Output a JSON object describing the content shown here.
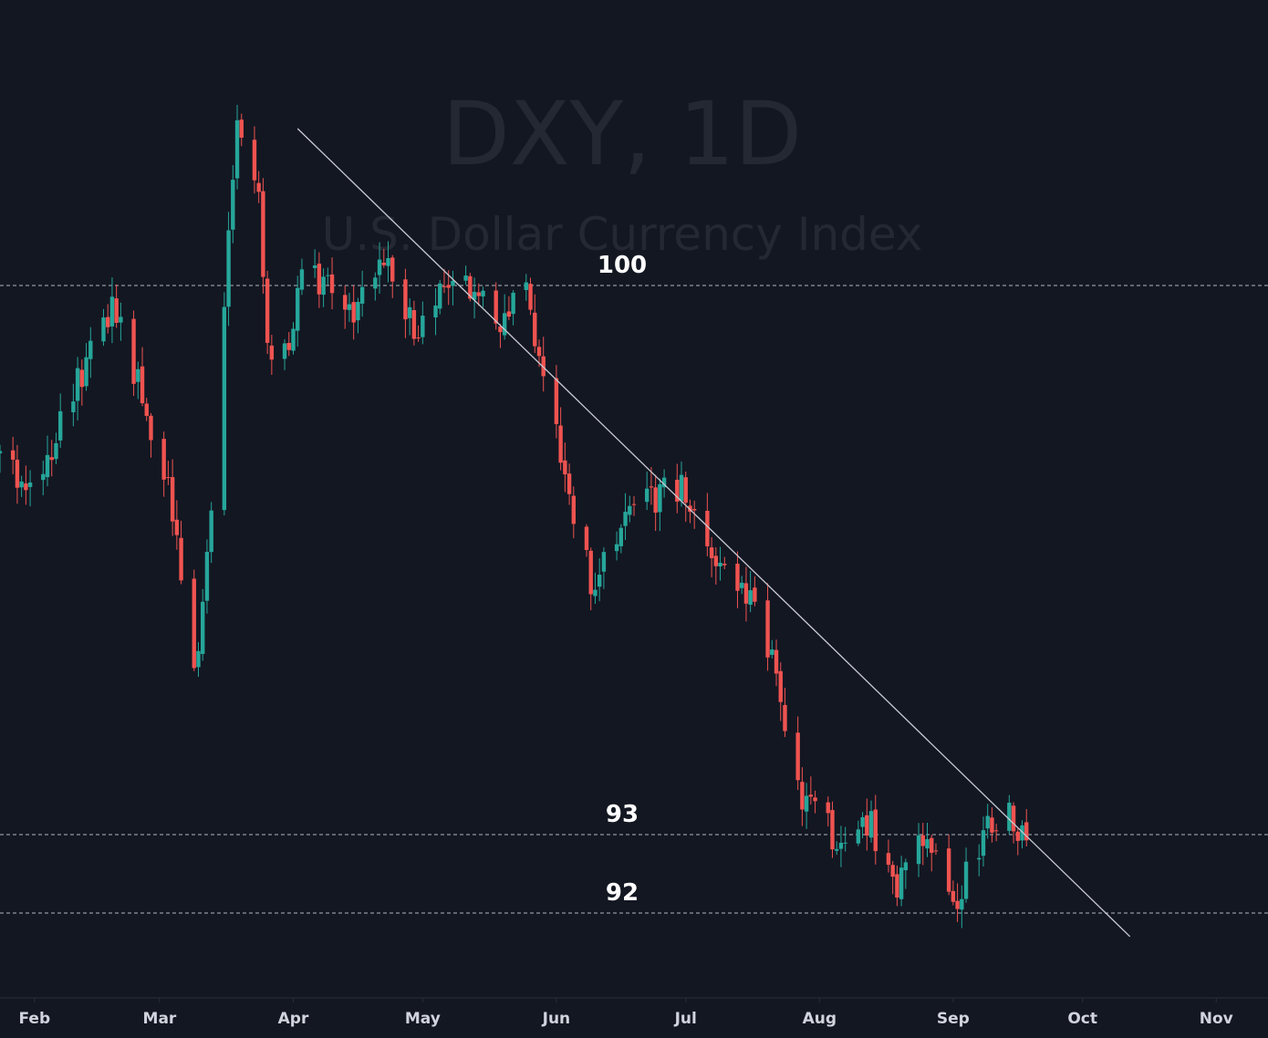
{
  "colors": {
    "background": "#131722",
    "up": "#26a69a",
    "down": "#ef5350",
    "trendline": "#c8cbd3",
    "level_line": "#b2b5be",
    "level_label": "#ffffff",
    "axis_text": "#d1d4dc",
    "watermark": "#242833"
  },
  "watermark": {
    "title": "DXY, 1D",
    "subtitle": "U.S. Dollar Currency Index"
  },
  "chart_data": {
    "type": "candlestick",
    "symbol": "DXY",
    "interval": "1D",
    "x_range": [
      "2020-01-24",
      "2020-11-13"
    ],
    "y_range": [
      91.3,
      102.3
    ],
    "x_tick_labels": [
      {
        "date": "2020-02-01",
        "label": "Feb"
      },
      {
        "date": "2020-03-01",
        "label": "Mar"
      },
      {
        "date": "2020-04-01",
        "label": "Apr"
      },
      {
        "date": "2020-05-01",
        "label": "May"
      },
      {
        "date": "2020-06-01",
        "label": "Jun"
      },
      {
        "date": "2020-07-01",
        "label": "Jul"
      },
      {
        "date": "2020-08-01",
        "label": "Aug"
      },
      {
        "date": "2020-09-01",
        "label": "Sep"
      },
      {
        "date": "2020-10-01",
        "label": "Oct"
      },
      {
        "date": "2020-11-01",
        "label": "Nov"
      }
    ],
    "horizontal_levels": [
      {
        "value": 100,
        "label": "100"
      },
      {
        "value": 93,
        "label": "93"
      },
      {
        "value": 92,
        "label": "92"
      }
    ],
    "trendline": {
      "start": [
        "2020-04-02",
        102.0
      ],
      "end": [
        "2020-10-12",
        91.7
      ]
    },
    "keypoints": [
      [
        "2020-01-24",
        97.8
      ],
      [
        "2020-01-31",
        97.4
      ],
      [
        "2020-02-10",
        98.6
      ],
      [
        "2020-02-19",
        99.7
      ],
      [
        "2020-02-27",
        98.4
      ],
      [
        "2020-03-05",
        96.9
      ],
      [
        "2020-03-09",
        94.9
      ],
      [
        "2020-03-12",
        96.5
      ],
      [
        "2020-03-19",
        102.3
      ],
      [
        "2020-03-24",
        101.0
      ],
      [
        "2020-03-26",
        99.2
      ],
      [
        "2020-03-31",
        99.0
      ],
      [
        "2020-04-03",
        100.4
      ],
      [
        "2020-04-08",
        100.0
      ],
      [
        "2020-04-15",
        99.6
      ],
      [
        "2020-04-22",
        100.3
      ],
      [
        "2020-04-29",
        99.4
      ],
      [
        "2020-05-04",
        99.8
      ],
      [
        "2020-05-12",
        100.0
      ],
      [
        "2020-05-19",
        99.5
      ],
      [
        "2020-05-25",
        99.9
      ],
      [
        "2020-06-01",
        98.3
      ],
      [
        "2020-06-05",
        96.9
      ],
      [
        "2020-06-10",
        96.1
      ],
      [
        "2020-06-16",
        97.0
      ],
      [
        "2020-06-24",
        97.3
      ],
      [
        "2020-06-30",
        97.4
      ],
      [
        "2020-07-08",
        96.4
      ],
      [
        "2020-07-17",
        95.9
      ],
      [
        "2020-07-23",
        94.8
      ],
      [
        "2020-07-27",
        93.5
      ],
      [
        "2020-07-31",
        93.3
      ],
      [
        "2020-08-06",
        92.8
      ],
      [
        "2020-08-13",
        93.1
      ],
      [
        "2020-08-19",
        92.4
      ],
      [
        "2020-08-25",
        93.0
      ],
      [
        "2020-09-01",
        92.1
      ],
      [
        "2020-09-07",
        92.9
      ],
      [
        "2020-09-11",
        93.2
      ],
      [
        "2020-09-14",
        93.2
      ],
      [
        "2020-09-17",
        92.9
      ],
      [
        "2020-09-18",
        92.8
      ]
    ]
  }
}
